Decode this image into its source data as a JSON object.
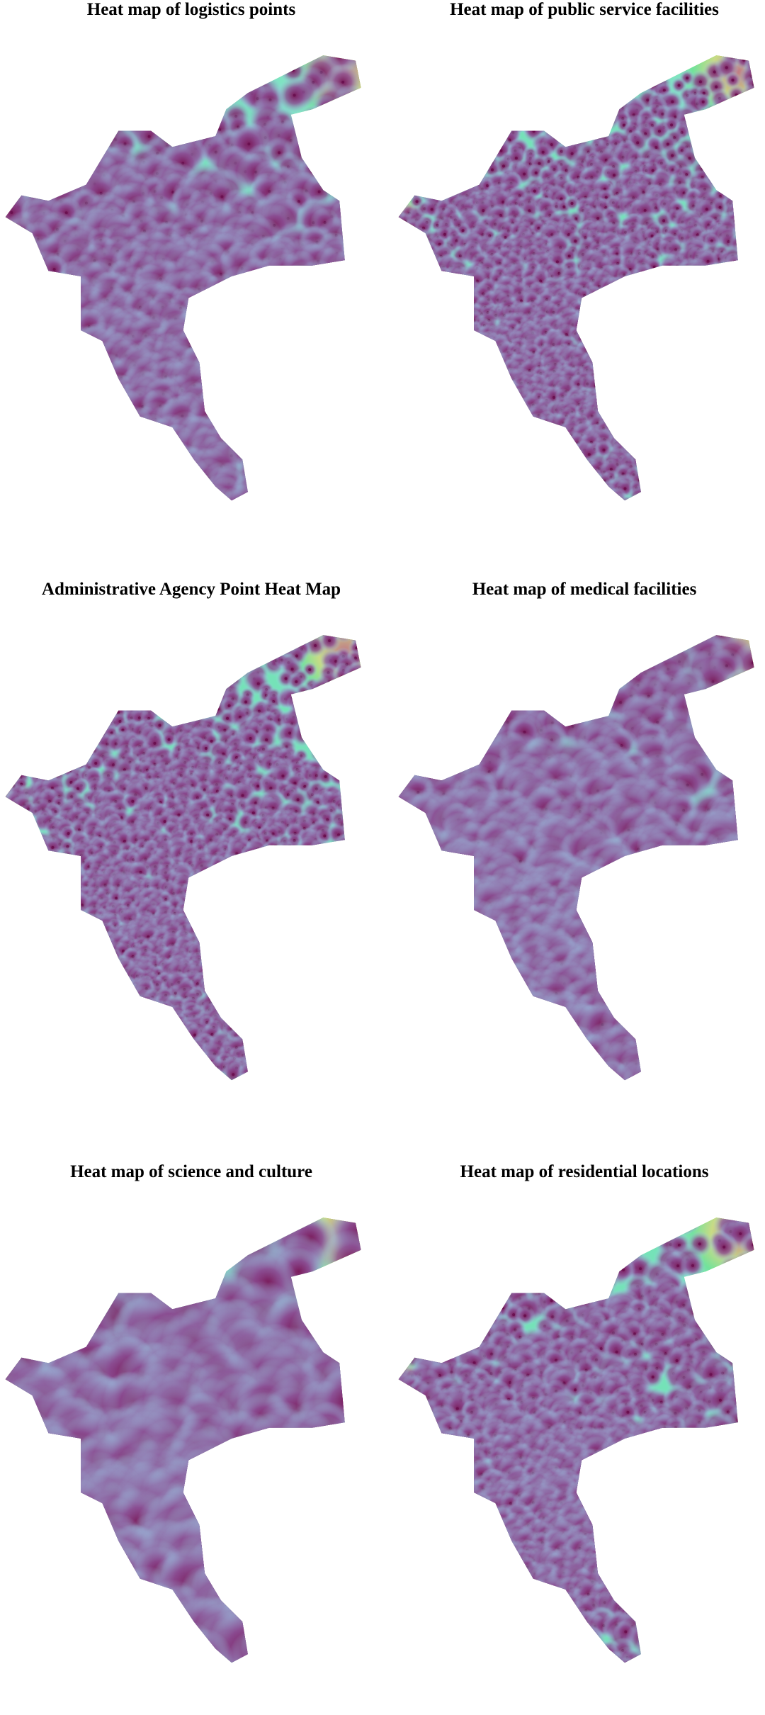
{
  "panels": [
    {
      "title": "Heat map of logistics points"
    },
    {
      "title": "Heat map of public service facilities"
    },
    {
      "title": "Administrative Agency Point Heat Map"
    },
    {
      "title": "Heat map of medical facilities"
    },
    {
      "title": "Heat map of science and culture"
    },
    {
      "title": "Heat map of residential locations"
    }
  ]
}
